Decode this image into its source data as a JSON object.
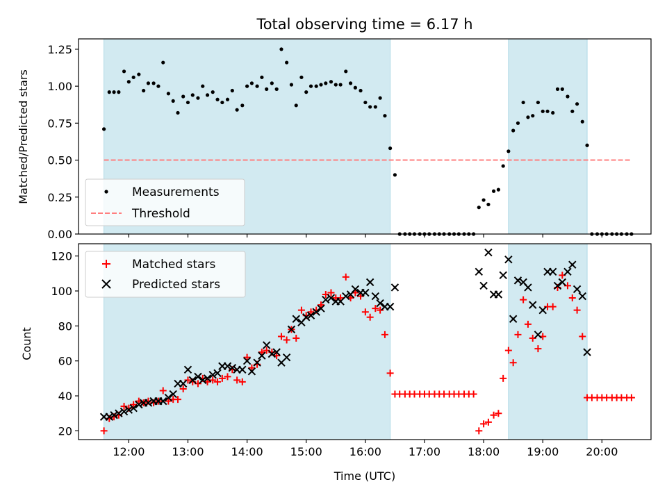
{
  "chart_data": [
    {
      "type": "scatter",
      "title": "Total observing time = 6.17 h",
      "xlabel": "",
      "ylabel": "Matched/Predicted stars",
      "xlim": [
        11.15,
        20.83
      ],
      "ylim": [
        0,
        1.32
      ],
      "yticks": [
        0.0,
        0.25,
        0.5,
        0.75,
        1.0,
        1.25
      ],
      "ytick_labels": [
        "0.00",
        "0.25",
        "0.50",
        "0.75",
        "1.00",
        "1.25"
      ],
      "legend_position": "lower-left",
      "colors": {
        "shade": "#add8e6",
        "threshold": "#ff7f7f",
        "points": "#000000"
      },
      "shaded_spans": [
        [
          11.58,
          16.42
        ],
        [
          18.42,
          19.75
        ]
      ],
      "threshold": {
        "name": "Threshold",
        "y": 0.5,
        "x": [
          11.58,
          20.5
        ]
      },
      "series": [
        {
          "name": "Measurements",
          "x": [
            11.58,
            11.67,
            11.75,
            11.83,
            11.92,
            12.0,
            12.08,
            12.17,
            12.25,
            12.33,
            12.42,
            12.5,
            12.58,
            12.67,
            12.75,
            12.83,
            12.92,
            13.0,
            13.08,
            13.17,
            13.25,
            13.33,
            13.42,
            13.5,
            13.58,
            13.67,
            13.75,
            13.83,
            13.92,
            14.0,
            14.08,
            14.17,
            14.25,
            14.33,
            14.42,
            14.5,
            14.58,
            14.67,
            14.75,
            14.83,
            14.92,
            15.0,
            15.08,
            15.17,
            15.25,
            15.33,
            15.42,
            15.5,
            15.58,
            15.67,
            15.75,
            15.83,
            15.92,
            16.0,
            16.08,
            16.17,
            16.25,
            16.33,
            16.42,
            16.5,
            16.58,
            16.67,
            16.75,
            16.83,
            16.92,
            17.0,
            17.08,
            17.17,
            17.25,
            17.33,
            17.42,
            17.5,
            17.58,
            17.67,
            17.75,
            17.83,
            17.92,
            18.0,
            18.08,
            18.17,
            18.25,
            18.33,
            18.42,
            18.5,
            18.58,
            18.67,
            18.75,
            18.83,
            18.92,
            19.0,
            19.08,
            19.17,
            19.25,
            19.33,
            19.42,
            19.5,
            19.58,
            19.67,
            19.75,
            19.83,
            19.92,
            20.0,
            20.08,
            20.17,
            20.25,
            20.33,
            20.42,
            20.5
          ],
          "y": [
            0.71,
            0.96,
            0.96,
            0.96,
            1.1,
            1.03,
            1.06,
            1.08,
            0.97,
            1.02,
            1.02,
            1.0,
            1.16,
            0.95,
            0.9,
            0.82,
            0.93,
            0.89,
            0.94,
            0.92,
            1.0,
            0.94,
            0.96,
            0.91,
            0.89,
            0.91,
            0.97,
            0.84,
            0.87,
            1.0,
            1.02,
            1.0,
            1.06,
            0.98,
            1.02,
            0.98,
            1.25,
            1.16,
            1.01,
            0.87,
            1.06,
            0.96,
            1.0,
            1.0,
            1.01,
            1.02,
            1.03,
            1.01,
            1.01,
            1.1,
            1.02,
            0.99,
            0.97,
            0.89,
            0.86,
            0.86,
            0.92,
            0.8,
            0.58,
            0.4,
            0,
            0,
            0,
            0,
            0,
            0,
            0,
            0,
            0,
            0,
            0,
            0,
            0,
            0,
            0,
            0,
            0.18,
            0.23,
            0.2,
            0.29,
            0.3,
            0.46,
            0.56,
            0.7,
            0.75,
            0.89,
            0.79,
            0.8,
            0.89,
            0.83,
            0.83,
            0.82,
            0.98,
            0.98,
            0.93,
            0.83,
            0.88,
            0.76,
            0.6,
            0,
            0,
            0,
            0,
            0,
            0,
            0,
            0,
            0
          ]
        }
      ]
    },
    {
      "type": "scatter",
      "title": "",
      "xlabel": "Time (UTC)",
      "ylabel": "Count",
      "xlim": [
        11.15,
        20.83
      ],
      "ylim": [
        15,
        127
      ],
      "yticks": [
        20,
        40,
        60,
        80,
        100,
        120
      ],
      "ytick_labels": [
        "20",
        "40",
        "60",
        "80",
        "100",
        "120"
      ],
      "xticks": [
        12,
        13,
        14,
        15,
        16,
        17,
        18,
        19,
        20
      ],
      "xtick_labels": [
        "12:00",
        "13:00",
        "14:00",
        "15:00",
        "16:00",
        "17:00",
        "18:00",
        "19:00",
        "20:00"
      ],
      "legend_position": "upper-left",
      "colors": {
        "shade": "#add8e6",
        "matched": "#ff0000",
        "predicted": "#000000"
      },
      "shaded_spans": [
        [
          11.58,
          16.42
        ],
        [
          18.42,
          19.75
        ]
      ],
      "series": [
        {
          "name": "Matched stars",
          "marker": "+",
          "x": [
            11.58,
            11.67,
            11.75,
            11.83,
            11.92,
            12.0,
            12.08,
            12.17,
            12.25,
            12.33,
            12.42,
            12.5,
            12.58,
            12.67,
            12.75,
            12.83,
            12.92,
            13.0,
            13.08,
            13.17,
            13.25,
            13.33,
            13.42,
            13.5,
            13.58,
            13.67,
            13.75,
            13.83,
            13.92,
            14.0,
            14.08,
            14.17,
            14.25,
            14.33,
            14.42,
            14.5,
            14.58,
            14.67,
            14.75,
            14.83,
            14.92,
            15.0,
            15.08,
            15.17,
            15.25,
            15.33,
            15.42,
            15.5,
            15.58,
            15.67,
            15.75,
            15.83,
            15.92,
            16.0,
            16.08,
            16.17,
            16.25,
            16.33,
            16.42,
            16.5,
            16.58,
            16.67,
            16.75,
            16.83,
            16.92,
            17.0,
            17.08,
            17.17,
            17.25,
            17.33,
            17.42,
            17.5,
            17.58,
            17.67,
            17.75,
            17.83,
            17.92,
            18.0,
            18.08,
            18.17,
            18.25,
            18.33,
            18.42,
            18.5,
            18.58,
            18.67,
            18.75,
            18.83,
            18.92,
            19.0,
            19.08,
            19.17,
            19.25,
            19.33,
            19.42,
            19.5,
            19.58,
            19.67,
            19.75,
            19.83,
            19.92,
            20.0,
            20.08,
            20.17,
            20.25,
            20.33,
            20.42,
            20.5
          ],
          "y": [
            20,
            27,
            28,
            29,
            34,
            33,
            35,
            37,
            36,
            37,
            36,
            37,
            43,
            37,
            38,
            38,
            44,
            49,
            48,
            47,
            50,
            48,
            49,
            48,
            50,
            51,
            55,
            49,
            48,
            62,
            56,
            58,
            65,
            66,
            65,
            63,
            74,
            72,
            78,
            73,
            89,
            86,
            88,
            89,
            92,
            98,
            99,
            96,
            96,
            108,
            96,
            99,
            97,
            88,
            85,
            90,
            89,
            75,
            53,
            41,
            41,
            41,
            41,
            41,
            41,
            41,
            41,
            41,
            41,
            41,
            41,
            41,
            41,
            41,
            41,
            41,
            20,
            24,
            25,
            29,
            30,
            50,
            66,
            59,
            75,
            95,
            81,
            73,
            67,
            74,
            91,
            91,
            102,
            109,
            103,
            96,
            89,
            74,
            39,
            39,
            39,
            39,
            39,
            39,
            39,
            39,
            39,
            39
          ]
        },
        {
          "name": "Predicted stars",
          "marker": "x",
          "x": [
            11.58,
            11.67,
            11.75,
            11.83,
            11.92,
            12.0,
            12.08,
            12.17,
            12.25,
            12.33,
            12.42,
            12.5,
            12.58,
            12.67,
            12.75,
            12.83,
            12.92,
            13.0,
            13.08,
            13.17,
            13.25,
            13.33,
            13.42,
            13.5,
            13.58,
            13.67,
            13.75,
            13.83,
            13.92,
            14.0,
            14.08,
            14.17,
            14.25,
            14.33,
            14.42,
            14.5,
            14.58,
            14.67,
            14.75,
            14.83,
            14.92,
            15.0,
            15.08,
            15.17,
            15.25,
            15.33,
            15.42,
            15.5,
            15.58,
            15.67,
            15.75,
            15.83,
            15.92,
            16.0,
            16.08,
            16.17,
            16.25,
            16.33,
            16.42,
            16.5,
            17.92,
            18.0,
            18.08,
            18.17,
            18.25,
            18.33,
            18.42,
            18.5,
            18.58,
            18.67,
            18.75,
            18.83,
            18.92,
            19.0,
            19.08,
            19.17,
            19.25,
            19.33,
            19.42,
            19.5,
            19.58,
            19.67,
            19.75
          ],
          "y": [
            28,
            28,
            29,
            30,
            31,
            32,
            33,
            35,
            36,
            36,
            37,
            37,
            37,
            39,
            41,
            47,
            47,
            55,
            49,
            51,
            49,
            50,
            52,
            53,
            57,
            57,
            56,
            55,
            55,
            60,
            54,
            59,
            63,
            69,
            64,
            65,
            59,
            62,
            78,
            84,
            82,
            85,
            86,
            88,
            90,
            95,
            96,
            94,
            94,
            97,
            98,
            101,
            99,
            99,
            105,
            97,
            93,
            91,
            91,
            102,
            111,
            103,
            122,
            98,
            98,
            109,
            118,
            84,
            106,
            105,
            102,
            92,
            75,
            89,
            111,
            111,
            103,
            105,
            111,
            115,
            101,
            97,
            65
          ]
        }
      ]
    }
  ]
}
